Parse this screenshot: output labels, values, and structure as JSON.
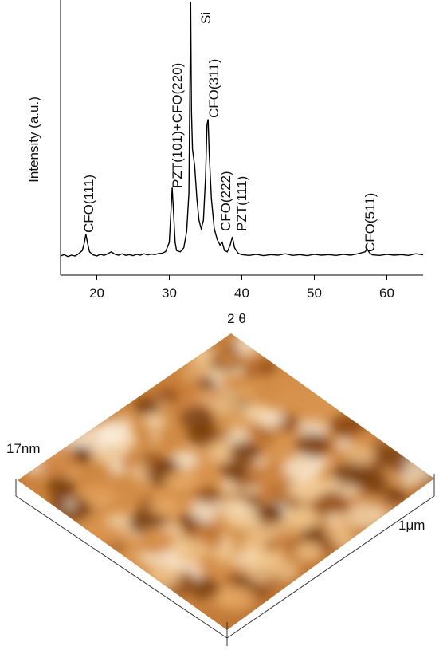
{
  "chart_data": {
    "type": "line",
    "ylabel": "Intensity (a.u.)",
    "xlabel": "2 θ",
    "x": [
      15,
      15.5,
      16,
      16.5,
      17,
      17.5,
      18,
      18.3,
      18.5,
      18.7,
      19,
      19.5,
      20,
      20.5,
      21,
      21.5,
      22,
      22.5,
      23,
      23.5,
      24,
      24.5,
      25,
      25.5,
      26,
      26.5,
      27,
      27.5,
      28,
      28.5,
      29,
      29.5,
      30,
      30.2,
      30.4,
      30.6,
      30.8,
      31,
      31.5,
      32,
      32.4,
      32.7,
      32.85,
      32.95,
      33.05,
      33.2,
      33.5,
      33.8,
      34.1,
      34.4,
      34.7,
      35,
      35.2,
      35.35,
      35.5,
      35.8,
      36.2,
      36.6,
      37,
      37.3,
      37.6,
      38,
      38.4,
      38.7,
      39,
      39.5,
      40,
      41,
      42,
      43,
      44,
      45,
      46,
      47,
      48,
      49,
      50,
      51,
      52,
      53,
      54,
      55,
      56,
      57,
      57.3,
      57.6,
      58,
      59,
      60,
      61,
      62,
      63,
      64,
      65
    ],
    "values": [
      7,
      7.5,
      6.8,
      7.3,
      7,
      7.8,
      9,
      12,
      15,
      12,
      8.5,
      7.4,
      7,
      7.6,
      7.2,
      7.8,
      8.5,
      7.6,
      7.3,
      7.8,
      7.2,
      7.5,
      7.1,
      7.6,
      7.3,
      7.8,
      7.4,
      7.7,
      7.5,
      7.9,
      8,
      8.6,
      12,
      22,
      32,
      22,
      12,
      9,
      8.5,
      10,
      16,
      30,
      70,
      100,
      60,
      46,
      40,
      28,
      20,
      17,
      20,
      36,
      55,
      57,
      45,
      28,
      17,
      13,
      11,
      12,
      9,
      8.5,
      11,
      14,
      10,
      8,
      7.5,
      7.2,
      7.6,
      7.1,
      7.5,
      7.3,
      7.8,
      7.2,
      7.5,
      7.1,
      7.6,
      7.3,
      7.5,
      7.2,
      7.6,
      7.3,
      7.8,
      8.5,
      9.5,
      8.2,
      7.4,
      7.2,
      7.6,
      7.3,
      7.5,
      7.2,
      7.8,
      7.4
    ],
    "color": "#000000",
    "xlim": [
      15,
      65
    ],
    "xticks": [
      20,
      30,
      40,
      50,
      60
    ],
    "ylim": [
      0,
      100
    ],
    "annotations": [
      "CFO(111)",
      "PZT(101)+CFO(220)",
      "Si",
      "CFO(311)",
      "CFO(222)",
      "PZT(111)",
      "CFO(511)"
    ]
  },
  "afm_image": {
    "height_label": "17nm",
    "scale_label": "1μm"
  }
}
